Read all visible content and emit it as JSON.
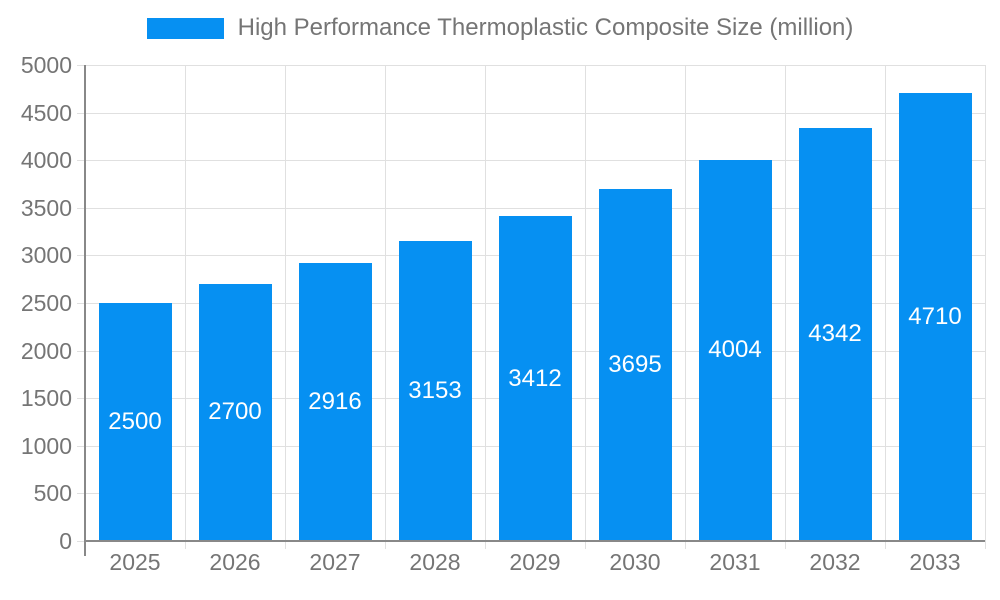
{
  "chart_data": {
    "type": "bar",
    "title": "High Performance Thermoplastic Composite Size (million)",
    "legend": {
      "position": "top",
      "label": "High Performance Thermoplastic Composite Size (million)"
    },
    "categories": [
      "2025",
      "2026",
      "2027",
      "2028",
      "2029",
      "2030",
      "2031",
      "2032",
      "2033"
    ],
    "series": [
      {
        "name": "High Performance Thermoplastic Composite Size (million)",
        "values": [
          2500,
          2700,
          2916,
          3153,
          3412,
          3695,
          4004,
          4342,
          4710
        ]
      }
    ],
    "data_labels": [
      "2500",
      "2700",
      "2916",
      "3153",
      "3412",
      "3695",
      "4004",
      "4342",
      "4710"
    ],
    "xlabel": "",
    "ylabel": "",
    "ylim": [
      0,
      5000
    ],
    "yticks": [
      0,
      500,
      1000,
      1500,
      2000,
      2500,
      3000,
      3500,
      4000,
      4500,
      5000
    ],
    "grid": true,
    "colors": {
      "bar": "#0690f2",
      "bar_label": "#ffffff",
      "axis_text": "#757575",
      "grid_line": "#e0e0e0",
      "axis_line": "#888888",
      "background": "#ffffff"
    }
  }
}
